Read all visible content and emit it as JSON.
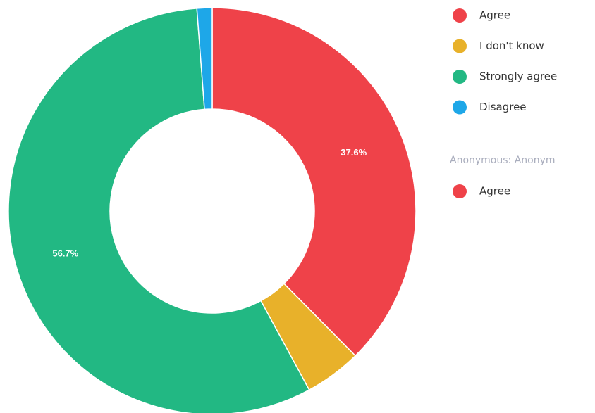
{
  "chart_data": {
    "type": "pie",
    "categories": [
      "Agree",
      "I don't know",
      "Strongly agree",
      "Disagree"
    ],
    "values": [
      37.6,
      4.5,
      56.7,
      1.2
    ],
    "value_labels": [
      "37.6%",
      null,
      "56.7%",
      null
    ],
    "colors": [
      "#ef4249",
      "#e8b12a",
      "#22b883",
      "#1ea7e8"
    ],
    "legend_groups": [
      {
        "title": "Anonymous: Anonym",
        "items": [
          "Agree"
        ]
      }
    ]
  }
}
